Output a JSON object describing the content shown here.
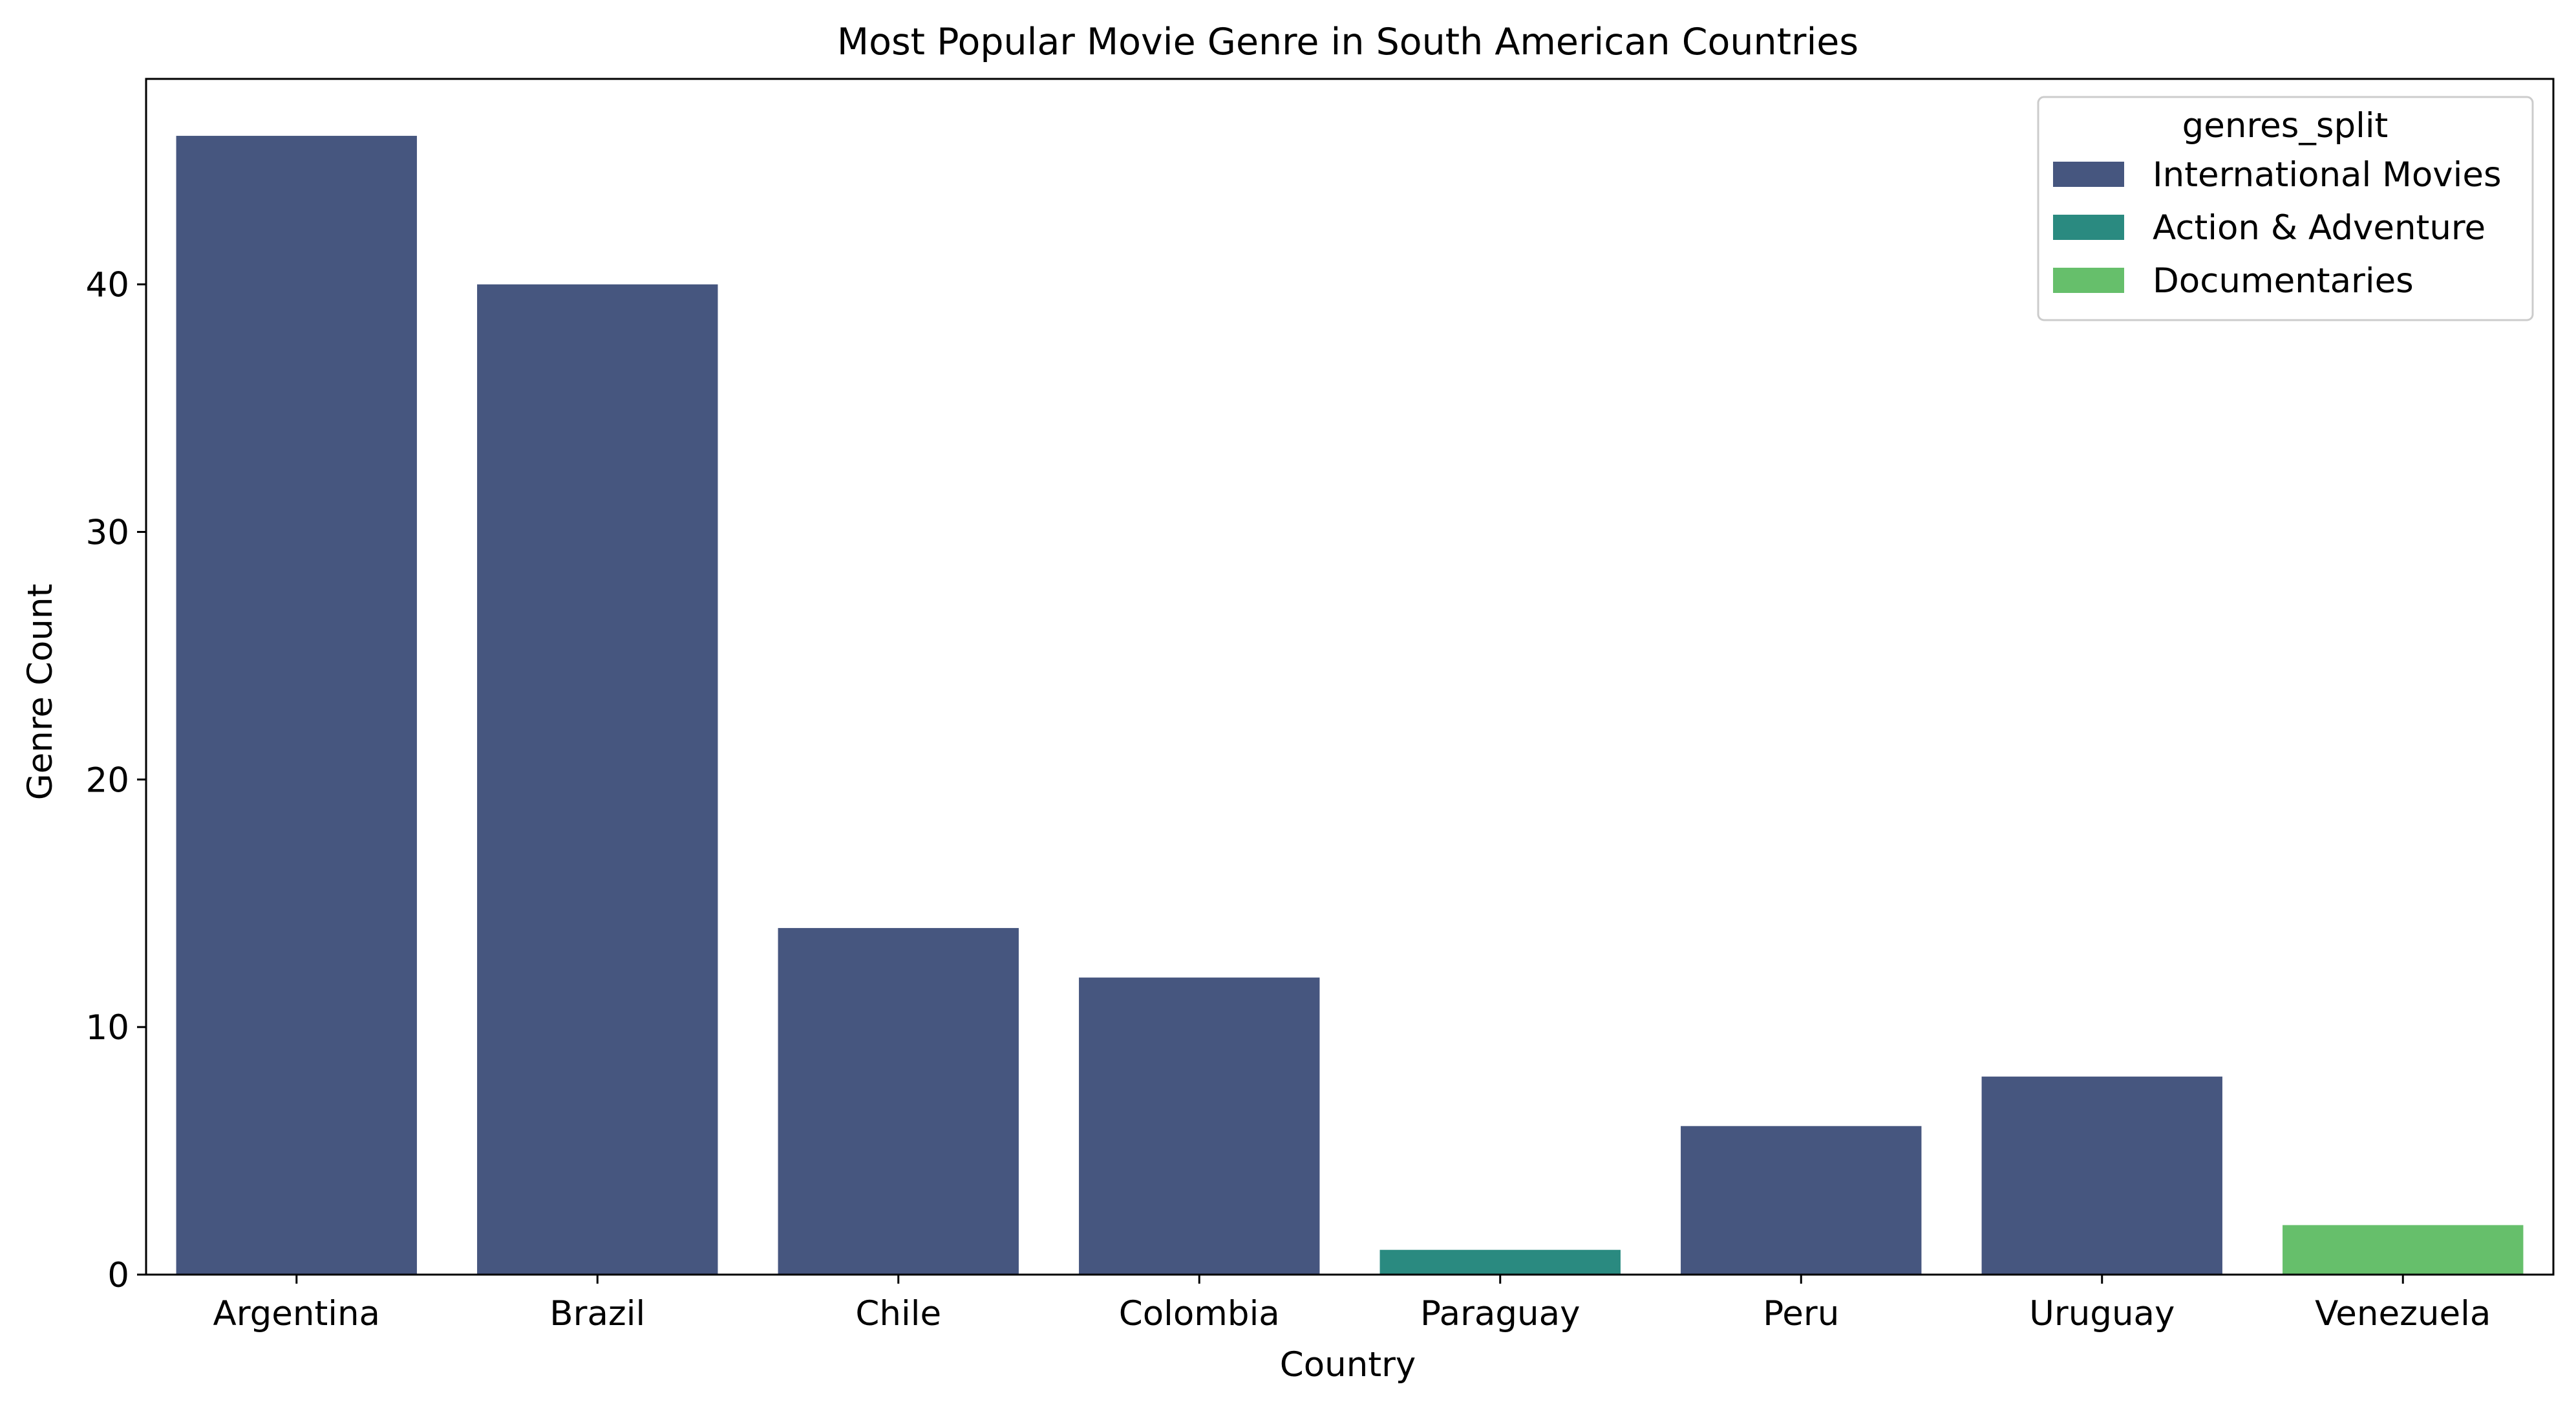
{
  "chart_data": {
    "type": "bar",
    "title": "Most Popular Movie Genre in South American Countries",
    "xlabel": "Country",
    "ylabel": "Genre Count",
    "categories": [
      "Argentina",
      "Brazil",
      "Chile",
      "Colombia",
      "Paraguay",
      "Peru",
      "Uruguay",
      "Venezuela"
    ],
    "values": [
      46,
      40,
      14,
      12,
      1,
      6,
      8,
      2
    ],
    "bar_genres": [
      "International Movies",
      "International Movies",
      "International Movies",
      "International Movies",
      "Action & Adventure",
      "International Movies",
      "International Movies",
      "Documentaries"
    ],
    "ylim": [
      0,
      48.3
    ],
    "yticks": [
      0,
      10,
      20,
      30,
      40
    ],
    "grid": false,
    "legend": {
      "title": "genres_split",
      "placement": "top-right",
      "entries": [
        {
          "name": "International Movies",
          "color": "#46567f"
        },
        {
          "name": "Action & Adventure",
          "color": "#2a8a80"
        },
        {
          "name": "Documentaries",
          "color": "#66bf6b"
        }
      ]
    }
  }
}
